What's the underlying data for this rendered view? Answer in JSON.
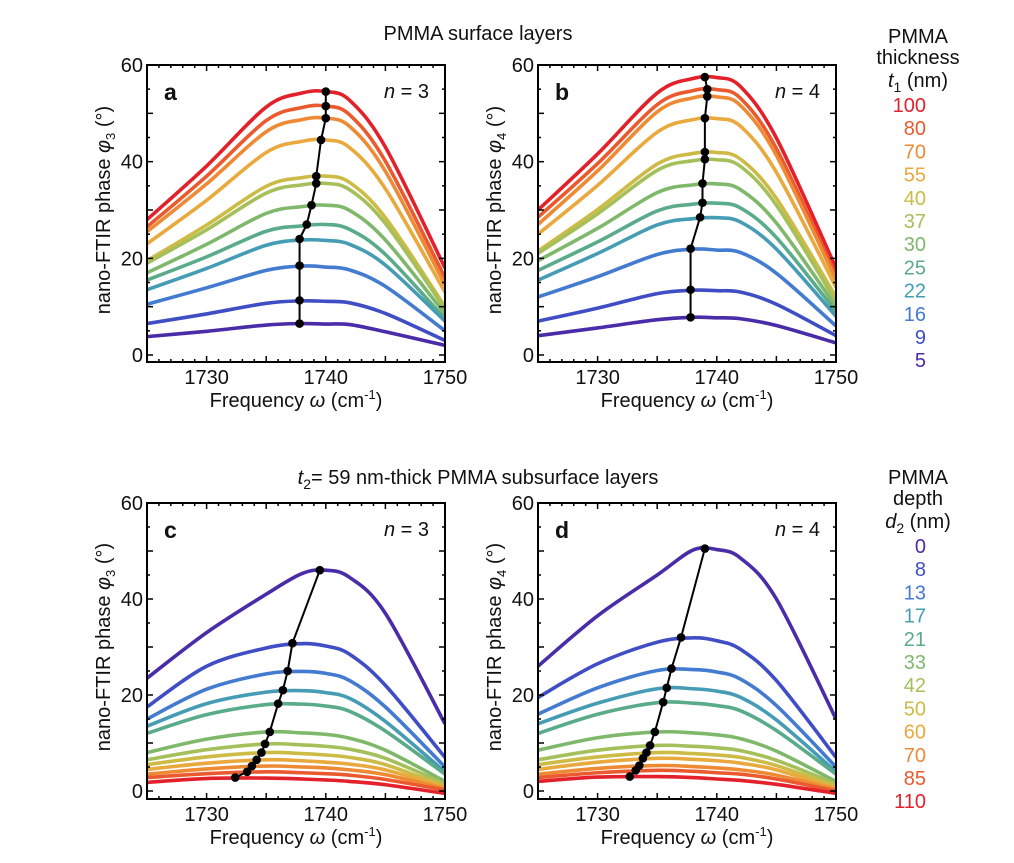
{
  "figure": {
    "top_title": "PMMA surface layers",
    "bottom_title_prefix": "t",
    "bottom_title_sub": "2",
    "bottom_title_rest": "= 59 nm-thick PMMA subsurface layers",
    "legend_top": {
      "heading_lines": [
        "PMMA",
        "thickness"
      ],
      "unit_var": "t",
      "unit_sub": "1",
      "unit_rest": " (nm)",
      "items": [
        "100",
        "80",
        "70",
        "55",
        "40",
        "37",
        "30",
        "25",
        "22",
        "16",
        "9",
        "5"
      ]
    },
    "legend_bottom": {
      "heading_lines": [
        "PMMA",
        "depth"
      ],
      "unit_var": "d",
      "unit_sub": "2",
      "unit_rest": " (nm)",
      "items": [
        "0",
        "8",
        "13",
        "17",
        "21",
        "33",
        "42",
        "50",
        "60",
        "70",
        "85",
        "110"
      ]
    }
  },
  "chart_data": [
    {
      "type": "line",
      "panel": "a",
      "n_label": "n = 3",
      "n_var": "n",
      "n_rest": " = 3",
      "xlabel": "Frequency ω (cm⁻¹)",
      "ylabel": "nano-FTIR phase φ3 (°)",
      "ylabel_sub": "3",
      "xlim": [
        1725,
        1750
      ],
      "ylim": [
        0,
        60
      ],
      "xticks": [
        1730,
        1740,
        1750
      ],
      "yticks": [
        0,
        20,
        40,
        60
      ],
      "legend_title": "PMMA thickness t1 (nm)",
      "x": [
        1725,
        1730,
        1735,
        1738,
        1740,
        1742,
        1745,
        1750
      ],
      "series": [
        {
          "name": "100",
          "color": "#e3212b",
          "values": [
            28,
            39.1,
            51.3,
            54.2,
            54.5,
            52.7,
            43.0,
            18
          ],
          "peak": [
            1740,
            54.5
          ]
        },
        {
          "name": "80",
          "color": "#ea5a2e",
          "values": [
            26.5,
            37.0,
            48.5,
            51.2,
            51.5,
            49.7,
            40.1,
            16
          ],
          "peak": [
            1740,
            51.5
          ]
        },
        {
          "name": "70",
          "color": "#ef8a34",
          "values": [
            25.5,
            35.4,
            46.2,
            48.7,
            49,
            47.3,
            38.0,
            14.5
          ],
          "peak": [
            1740,
            49
          ]
        },
        {
          "name": "55",
          "color": "#e9a93c",
          "values": [
            23,
            32.0,
            41.9,
            44.2,
            44.5,
            42.9,
            34.4,
            13
          ],
          "peak": [
            1739.6,
            44.5
          ]
        },
        {
          "name": "40",
          "color": "#cdbb45",
          "values": [
            19.5,
            26.9,
            34.9,
            36.7,
            37,
            35.7,
            28.4,
            10
          ],
          "peak": [
            1739.2,
            37
          ]
        },
        {
          "name": "37",
          "color": "#a5c05a",
          "values": [
            19,
            25.9,
            33.5,
            35.2,
            35.5,
            34.2,
            27.2,
            9.5
          ],
          "peak": [
            1739.2,
            35.5
          ]
        },
        {
          "name": "30",
          "color": "#80b86b",
          "values": [
            17,
            22.9,
            29.3,
            30.7,
            31,
            29.9,
            23.8,
            8.5
          ],
          "peak": [
            1738.8,
            31
          ]
        },
        {
          "name": "25",
          "color": "#5aab8a",
          "values": [
            15.5,
            20.3,
            25.6,
            26.7,
            27,
            26.0,
            20.8,
            7.5
          ],
          "peak": [
            1738.4,
            27
          ]
        },
        {
          "name": "22",
          "color": "#469cb5",
          "values": [
            13.5,
            17.9,
            22.7,
            23.8,
            23.7,
            22.9,
            18.6,
            7
          ],
          "peak": [
            1737.8,
            24
          ]
        },
        {
          "name": "16",
          "color": "#437bd0",
          "values": [
            10.5,
            13.9,
            17.5,
            18.4,
            18.2,
            17.6,
            14.2,
            5
          ],
          "peak": [
            1737.8,
            18.5
          ]
        },
        {
          "name": "9",
          "color": "#3f4ec4",
          "values": [
            6.5,
            8.5,
            10.7,
            11.2,
            11.1,
            10.8,
            8.6,
            3
          ],
          "peak": [
            1737.8,
            11.3
          ]
        },
        {
          "name": "5",
          "color": "#4a2ba8",
          "values": [
            3.8,
            4.9,
            6.2,
            6.5,
            6.4,
            6.3,
            4.8,
            2
          ],
          "peak": [
            1737.8,
            6.5
          ]
        }
      ]
    },
    {
      "type": "line",
      "panel": "b",
      "n_label": "n = 4",
      "n_var": "n",
      "n_rest": " = 4",
      "xlabel": "Frequency ω (cm⁻¹)",
      "ylabel": "nano-FTIR phase φ4 (°)",
      "ylabel_sub": "4",
      "xlim": [
        1725,
        1750
      ],
      "ylim": [
        0,
        60
      ],
      "xticks": [
        1730,
        1740,
        1750
      ],
      "yticks": [
        0,
        20,
        40,
        60
      ],
      "legend_title": "PMMA thickness t1 (nm)",
      "x": [
        1725,
        1730,
        1735,
        1738,
        1740,
        1742,
        1745,
        1750
      ],
      "series": [
        {
          "name": "100",
          "color": "#e3212b",
          "values": [
            30,
            41.6,
            54.2,
            57.2,
            57.4,
            55.5,
            44.9,
            18
          ],
          "peak": [
            1739,
            57.5
          ]
        },
        {
          "name": "80",
          "color": "#ea5a2e",
          "values": [
            28.5,
            39.6,
            51.8,
            54.7,
            54.9,
            53.1,
            42.7,
            16.5
          ],
          "peak": [
            1739.2,
            55
          ]
        },
        {
          "name": "70",
          "color": "#ef8a34",
          "values": [
            27,
            38.1,
            50.3,
            53.2,
            53.4,
            51.6,
            41.3,
            15.5
          ],
          "peak": [
            1739.2,
            53.5
          ]
        },
        {
          "name": "55",
          "color": "#e9a93c",
          "values": [
            25,
            35.1,
            46.1,
            48.7,
            48.9,
            47.3,
            37.8,
            14
          ],
          "peak": [
            1739,
            49
          ]
        },
        {
          "name": "40",
          "color": "#cdbb45",
          "values": [
            21.5,
            30.1,
            39.5,
            41.7,
            41.9,
            40.5,
            32.4,
            12
          ],
          "peak": [
            1739,
            42
          ]
        },
        {
          "name": "37",
          "color": "#a5c05a",
          "values": [
            21,
            29.2,
            38.2,
            40.2,
            40.4,
            39.0,
            31.0,
            11
          ],
          "peak": [
            1739,
            40.5
          ]
        },
        {
          "name": "30",
          "color": "#80b86b",
          "values": [
            19.5,
            26.2,
            33.6,
            35.2,
            35.4,
            34.2,
            27.3,
            10
          ],
          "peak": [
            1738.8,
            35.5
          ]
        },
        {
          "name": "25",
          "color": "#5aab8a",
          "values": [
            17.5,
            23.4,
            29.8,
            31.2,
            31.4,
            30.4,
            24.3,
            9
          ],
          "peak": [
            1738.8,
            31.5
          ]
        },
        {
          "name": "22",
          "color": "#469cb5",
          "values": [
            15.5,
            21.0,
            26.9,
            28.2,
            28.4,
            27.5,
            21.9,
            8
          ],
          "peak": [
            1738.6,
            28.5
          ]
        },
        {
          "name": "16",
          "color": "#437bd0",
          "values": [
            12,
            16.2,
            20.8,
            21.9,
            21.7,
            21.2,
            16.9,
            6
          ],
          "peak": [
            1737.8,
            22
          ]
        },
        {
          "name": "9",
          "color": "#3f4ec4",
          "values": [
            7,
            9.7,
            12.7,
            13.4,
            13.3,
            13.0,
            10.5,
            4
          ],
          "peak": [
            1737.8,
            13.5
          ]
        },
        {
          "name": "5",
          "color": "#4a2ba8",
          "values": [
            4,
            5.6,
            7.3,
            7.8,
            7.7,
            7.5,
            6.1,
            2.5
          ],
          "peak": [
            1737.8,
            7.8
          ]
        }
      ]
    },
    {
      "type": "line",
      "panel": "c",
      "n_label": "n = 3",
      "n_var": "n",
      "n_rest": " = 3",
      "xlabel": "Frequency ω (cm⁻¹)",
      "ylabel": "nano-FTIR phase φ3 (°)",
      "ylabel_sub": "3",
      "xlim": [
        1725,
        1750
      ],
      "ylim": [
        0,
        60
      ],
      "xticks": [
        1730,
        1740,
        1750
      ],
      "yticks": [
        0,
        20,
        40,
        60
      ],
      "legend_title": "PMMA depth d2 (nm)",
      "x": [
        1725,
        1730,
        1735,
        1738,
        1740,
        1742,
        1745,
        1750
      ],
      "series": [
        {
          "name": "0",
          "color": "#4a2ba8",
          "values": [
            23.5,
            33,
            41,
            45.3,
            46,
            44.5,
            37,
            14
          ],
          "peak": [
            1739.5,
            46
          ]
        },
        {
          "name": "8",
          "color": "#3f4ec4",
          "values": [
            17.5,
            26,
            29.8,
            30.7,
            30.2,
            28.5,
            22,
            7
          ],
          "peak": [
            1737.2,
            30.8
          ]
        },
        {
          "name": "13",
          "color": "#437bd0",
          "values": [
            15,
            21.2,
            24.4,
            24.9,
            24.5,
            23,
            17.5,
            5
          ],
          "peak": [
            1736.8,
            25
          ]
        },
        {
          "name": "17",
          "color": "#469cb5",
          "values": [
            13.5,
            18.2,
            20.6,
            20.9,
            20.5,
            19.3,
            14.5,
            4
          ],
          "peak": [
            1736.4,
            21
          ]
        },
        {
          "name": "21",
          "color": "#5aab8a",
          "values": [
            12,
            15.9,
            18.0,
            18.1,
            17.7,
            16.6,
            12.5,
            3.5
          ],
          "peak": [
            1736,
            18.2
          ]
        },
        {
          "name": "33",
          "color": "#80b86b",
          "values": [
            8,
            10.8,
            12.3,
            12.1,
            11.8,
            11.0,
            8.5,
            2
          ],
          "peak": [
            1735.3,
            12.3
          ]
        },
        {
          "name": "42",
          "color": "#a5c05a",
          "values": [
            6.5,
            8.6,
            9.8,
            9.6,
            9.3,
            8.7,
            6.8,
            1.5
          ],
          "peak": [
            1734.9,
            9.8
          ]
        },
        {
          "name": "50",
          "color": "#cdbb45",
          "values": [
            5.5,
            7.1,
            8.0,
            7.8,
            7.5,
            7.0,
            5.5,
            1
          ],
          "peak": [
            1734.6,
            8
          ]
        },
        {
          "name": "60",
          "color": "#e9a93c",
          "values": [
            4.5,
            5.8,
            6.5,
            6.3,
            6.0,
            5.6,
            4.4,
            0.8
          ],
          "peak": [
            1734.2,
            6.5
          ]
        },
        {
          "name": "70",
          "color": "#ef8a34",
          "values": [
            3.5,
            4.6,
            5.2,
            5.0,
            4.8,
            4.4,
            3.4,
            0.5
          ],
          "peak": [
            1733.8,
            5.2
          ]
        },
        {
          "name": "85",
          "color": "#ea5a2e",
          "values": [
            2.8,
            3.6,
            4.0,
            3.8,
            3.6,
            3.3,
            2.4,
            0.2
          ],
          "peak": [
            1733.4,
            4
          ]
        },
        {
          "name": "110",
          "color": "#e3212b",
          "values": [
            1.8,
            2.6,
            2.7,
            2.5,
            2.3,
            2.0,
            1.3,
            -0.5
          ],
          "peak": [
            1732.4,
            2.8
          ]
        }
      ]
    },
    {
      "type": "line",
      "panel": "d",
      "n_label": "n = 4",
      "n_var": "n",
      "n_rest": " = 4",
      "xlabel": "Frequency ω (cm⁻¹)",
      "ylabel": "nano-FTIR phase φ4 (°)",
      "ylabel_sub": "4",
      "xlim": [
        1725,
        1750
      ],
      "ylim": [
        0,
        60
      ],
      "xticks": [
        1730,
        1740,
        1750
      ],
      "yticks": [
        0,
        20,
        40,
        60
      ],
      "legend_title": "PMMA depth d2 (nm)",
      "x": [
        1725,
        1730,
        1735,
        1738,
        1740,
        1742,
        1745,
        1750
      ],
      "series": [
        {
          "name": "0",
          "color": "#4a2ba8",
          "values": [
            26,
            36.5,
            45,
            50.2,
            50.3,
            48.5,
            40,
            15
          ],
          "peak": [
            1739,
            50.5
          ]
        },
        {
          "name": "8",
          "color": "#3f4ec4",
          "values": [
            19.5,
            26.5,
            31,
            31.9,
            31.3,
            29.5,
            23,
            7
          ],
          "peak": [
            1737,
            32
          ]
        },
        {
          "name": "13",
          "color": "#437bd0",
          "values": [
            16,
            21.5,
            25.1,
            25.3,
            24.8,
            23.3,
            17.8,
            5
          ],
          "peak": [
            1736.2,
            25.5
          ]
        },
        {
          "name": "17",
          "color": "#469cb5",
          "values": [
            14,
            18.3,
            21.3,
            21.3,
            20.8,
            19.5,
            14.8,
            4
          ],
          "peak": [
            1735.8,
            21.5
          ]
        },
        {
          "name": "21",
          "color": "#5aab8a",
          "values": [
            12,
            16,
            18.4,
            18.3,
            17.8,
            16.7,
            12.6,
            3.5
          ],
          "peak": [
            1735.5,
            18.5
          ]
        },
        {
          "name": "33",
          "color": "#80b86b",
          "values": [
            8.5,
            11.1,
            12.3,
            12.1,
            11.7,
            10.9,
            8.3,
            2
          ],
          "peak": [
            1734.8,
            12.3
          ]
        },
        {
          "name": "42",
          "color": "#a5c05a",
          "values": [
            6.5,
            8.5,
            9.5,
            9.3,
            9.0,
            8.4,
            6.4,
            1.5
          ],
          "peak": [
            1734.4,
            9.5
          ]
        },
        {
          "name": "50",
          "color": "#cdbb45",
          "values": [
            5.5,
            7.1,
            8.0,
            7.8,
            7.5,
            7.0,
            5.3,
            1
          ],
          "peak": [
            1734.1,
            8
          ]
        },
        {
          "name": "60",
          "color": "#e9a93c",
          "values": [
            4.5,
            6.0,
            6.8,
            6.6,
            6.3,
            5.8,
            4.4,
            0.5
          ],
          "peak": [
            1733.8,
            6.8
          ]
        },
        {
          "name": "70",
          "color": "#ef8a34",
          "values": [
            3.5,
            4.7,
            5.3,
            5.1,
            4.8,
            4.4,
            3.3,
            0.3
          ],
          "peak": [
            1733.5,
            5.3
          ]
        },
        {
          "name": "85",
          "color": "#ea5a2e",
          "values": [
            2.8,
            3.8,
            4.3,
            4.1,
            3.8,
            3.5,
            2.5,
            0
          ],
          "peak": [
            1733.2,
            4.3
          ]
        },
        {
          "name": "110",
          "color": "#e3212b",
          "values": [
            2,
            2.9,
            3.0,
            2.8,
            2.5,
            2.2,
            1.4,
            -0.5
          ],
          "peak": [
            1732.7,
            3
          ]
        }
      ]
    }
  ],
  "axis_text": {
    "xlabel_main": "Frequency ",
    "xlabel_var": "ω",
    "xlabel_unit": " (cm",
    "xlabel_sup": "-1",
    "xlabel_close": ")",
    "ylabel_main": "nano-FTIR phase ",
    "ylabel_var": "φ",
    "ylabel_unit": " (°)"
  }
}
